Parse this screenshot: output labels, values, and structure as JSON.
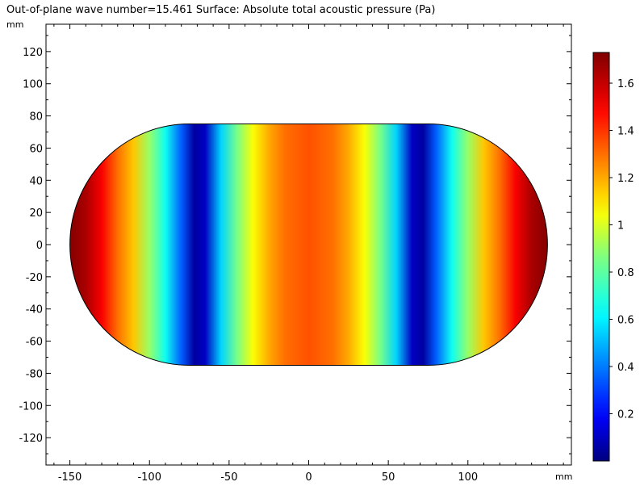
{
  "window": {
    "title": "Out-of-plane wave number=15.461  Surface: Absolute total acoustic pressure (Pa)"
  },
  "chart_data": {
    "type": "heatmap",
    "title": "Out-of-plane wave number=15.461  Surface: Absolute total acoustic pressure (Pa)",
    "xlabel": "mm",
    "ylabel": "mm",
    "xlim": [
      -165,
      165
    ],
    "ylim": [
      -137,
      137
    ],
    "x_ticks": [
      -150,
      -100,
      -50,
      0,
      50,
      100
    ],
    "y_ticks": [
      -120,
      -100,
      -80,
      -60,
      -40,
      -20,
      0,
      20,
      40,
      60,
      80,
      100,
      120
    ],
    "domain_shape": "stadium",
    "domain": {
      "straight_x_range": [
        -75,
        75
      ],
      "half_height": 75,
      "end_radius": 75
    },
    "field_profile_x": [
      -150,
      -140,
      -130,
      -120,
      -110,
      -100,
      -90,
      -80,
      -72,
      -65,
      -55,
      -45,
      -35,
      -25,
      -15,
      0,
      15,
      25,
      35,
      45,
      55,
      65,
      72,
      80,
      90,
      100,
      110,
      120,
      130,
      140,
      150
    ],
    "field_profile_values": [
      1.72,
      1.65,
      1.5,
      1.3,
      1.15,
      0.9,
      0.65,
      0.35,
      0.05,
      0.1,
      0.55,
      0.85,
      1.05,
      1.2,
      1.3,
      1.35,
      1.3,
      1.2,
      1.05,
      0.85,
      0.55,
      0.1,
      0.05,
      0.35,
      0.65,
      0.9,
      1.15,
      1.3,
      1.5,
      1.65,
      1.72
    ],
    "colorbar": {
      "colormap": "rainbow",
      "min": 0,
      "max": 1.73,
      "ticks": [
        0.2,
        0.4,
        0.6,
        0.8,
        1,
        1.2,
        1.4,
        1.6
      ],
      "tick_labels": [
        "0.2",
        "0.4",
        "0.6",
        "0.8",
        "1",
        "1.2",
        "1.4",
        "1.6"
      ]
    }
  }
}
